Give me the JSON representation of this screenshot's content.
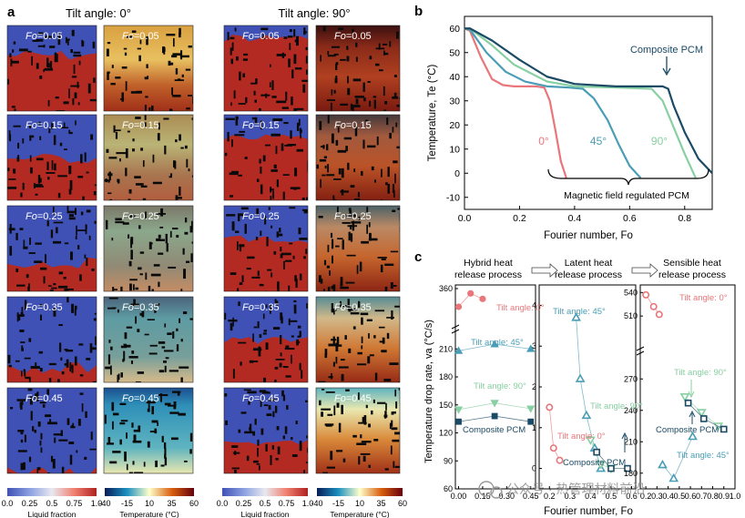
{
  "panel_a": {
    "letter": "a",
    "group0_title": "Tilt angle: 0°",
    "group90_title": "Tilt angle: 90°",
    "rows": [
      "Fo=0.05",
      "Fo=0.15",
      "Fo=0.25",
      "Fo=0.35",
      "Fo=0.45"
    ],
    "liquid_bar": {
      "ticks": [
        "0.0",
        "0.25",
        "0.5",
        "0.75",
        "1.0"
      ],
      "label": "Liquid fraction"
    },
    "temp_bar": {
      "ticks": [
        "-40",
        "-15",
        "10",
        "35",
        "60"
      ],
      "label": "Temperature (°C)"
    }
  },
  "colors": {
    "cold": "#3f51b5",
    "hot": "#c0392b",
    "accent_red": "#e8767a",
    "accent_teal": "#4a9db6",
    "accent_green": "#88cfa2",
    "accent_navy": "#1a4a66"
  },
  "chart_data": [
    {
      "id": "b",
      "letter": "b",
      "type": "line",
      "xlabel": "Fourier number, Fo",
      "ylabel": "Temperature, Te (°C)",
      "xlim": [
        0,
        0.9
      ],
      "ylim": [
        -15,
        65
      ],
      "xticks": [
        "0.0",
        "0.2",
        "0.4",
        "0.6",
        "0.8"
      ],
      "yticks": [
        "-10",
        "0",
        "10",
        "20",
        "30",
        "40",
        "50",
        "60"
      ],
      "series": [
        {
          "name": "0°",
          "color": "#e8767a",
          "x": [
            0,
            0.02,
            0.06,
            0.1,
            0.14,
            0.18,
            0.22,
            0.26,
            0.29,
            0.31,
            0.33,
            0.35,
            0.37
          ],
          "y": [
            60,
            59,
            48,
            39,
            36.5,
            36,
            36,
            36,
            35.5,
            30,
            18,
            5,
            -2
          ]
        },
        {
          "name": "45°",
          "color": "#4a9db6",
          "x": [
            0,
            0.02,
            0.08,
            0.15,
            0.22,
            0.3,
            0.38,
            0.43,
            0.47,
            0.52,
            0.56,
            0.6,
            0.64
          ],
          "y": [
            60,
            59.5,
            50,
            42,
            38,
            36,
            35.5,
            35,
            31,
            22,
            12,
            3,
            -2
          ]
        },
        {
          "name": "90°",
          "color": "#88cfa2",
          "x": [
            0,
            0.02,
            0.1,
            0.18,
            0.3,
            0.4,
            0.55,
            0.68,
            0.72,
            0.76,
            0.8,
            0.84
          ],
          "y": [
            60,
            60,
            53,
            45,
            38,
            36,
            35.5,
            35,
            30,
            19,
            8,
            -2
          ]
        },
        {
          "name": "Composite PCM",
          "color": "#1a4a66",
          "x": [
            0,
            0.02,
            0.1,
            0.2,
            0.3,
            0.4,
            0.55,
            0.72,
            0.74,
            0.76,
            0.8,
            0.85,
            0.9
          ],
          "y": [
            60,
            60,
            55,
            47,
            40,
            37,
            36,
            36,
            35,
            28,
            17,
            6,
            0
          ]
        }
      ],
      "annotations": {
        "composite": "Composite PCM",
        "label0": "0°",
        "label45": "45°",
        "label90": "90°",
        "brace": "Magnetic field regulated PCM"
      }
    },
    {
      "id": "c",
      "letter": "c",
      "type": "scatter",
      "xlabel": "Fourier number, Fo",
      "ylabel": "Temperature drop rate, va (°C/s)",
      "process_titles": [
        "Hybrid heat release process",
        "Latent heat release process",
        "Sensible heat release process"
      ],
      "subplots": [
        {
          "name": "hybrid",
          "xlim": [
            -0.02,
            0.48
          ],
          "ylim": [
            60,
            360
          ],
          "xticks": [
            "0.00",
            "0.15",
            "0.30",
            "0.45"
          ],
          "yticks": [
            "60",
            "90",
            "120",
            "150",
            "180",
            "210",
            "360"
          ],
          "series": [
            {
              "name": "Tilt angle: 0°",
              "marker": "circle",
              "color": "#e8767a",
              "x": [
                0.0,
                0.075,
                0.15
              ],
              "y": [
                330,
                352,
                343
              ]
            },
            {
              "name": "Tilt angle: 45°",
              "marker": "triangle-up",
              "color": "#4a9db6",
              "x": [
                0.0,
                0.225,
                0.45
              ],
              "y": [
                208,
                215,
                210
              ]
            },
            {
              "name": "Tilt angle: 90°",
              "marker": "triangle-down",
              "color": "#88cfa2",
              "x": [
                0.0,
                0.225,
                0.45
              ],
              "y": [
                145,
                152,
                146
              ]
            },
            {
              "name": "Composite PCM",
              "marker": "square",
              "color": "#1a4a66",
              "x": [
                0.0,
                0.225,
                0.45
              ],
              "y": [
                132,
                138,
                132
              ]
            }
          ]
        },
        {
          "name": "latent",
          "xlim": [
            0.15,
            0.62
          ],
          "ylim": [
            -0.5,
            4.5
          ],
          "xticks": [
            "0.2",
            "0.3",
            "0.4",
            "0.5",
            "0.6"
          ],
          "yticks": [
            "0",
            "1",
            "2",
            "3",
            "4"
          ],
          "series": [
            {
              "name": "Tilt angle: 0°",
              "marker": "circle",
              "color": "#e8767a",
              "x": [
                0.2,
                0.22,
                0.25
              ],
              "y": [
                1.5,
                0.5,
                0.2
              ]
            },
            {
              "name": "Tilt angle: 45°",
              "marker": "triangle-up",
              "color": "#4a9db6",
              "x": [
                0.33,
                0.35,
                0.38,
                0.42,
                0.45
              ],
              "y": [
                3.7,
                2.2,
                1.3,
                0.5,
                0.0
              ]
            },
            {
              "name": "Tilt angle: 90°",
              "marker": "triangle-down",
              "color": "#88cfa2",
              "x": [
                0.4,
                0.45,
                0.5
              ],
              "y": [
                0.7,
                0.1,
                0.0
              ]
            },
            {
              "name": "Composite PCM",
              "marker": "square",
              "color": "#1a4a66",
              "x": [
                0.43,
                0.5,
                0.58
              ],
              "y": [
                0.4,
                0.0,
                0.0
              ]
            }
          ]
        },
        {
          "name": "sensible",
          "xlim": [
            0.15,
            1.0
          ],
          "ylim": [
            165,
            545
          ],
          "xticks": [
            "0.2",
            "0.3",
            "0.4",
            "0.5",
            "0.6",
            "0.7",
            "0.8",
            "0.9",
            "1.0"
          ],
          "yticks": [
            "180",
            "210",
            "240",
            "270",
            "510",
            "540"
          ],
          "series": [
            {
              "name": "Tilt angle: 0°",
              "marker": "circle",
              "color": "#e8767a",
              "x": [
                0.2,
                0.27,
                0.32
              ],
              "y": [
                537,
                522,
                512
              ]
            },
            {
              "name": "Tilt angle: 45°",
              "marker": "triangle-up",
              "color": "#4a9db6",
              "x": [
                0.35,
                0.45,
                0.62
              ],
              "y": [
                188,
                175,
                215
              ]
            },
            {
              "name": "Tilt angle: 90°",
              "marker": "triangle-down",
              "color": "#88cfa2",
              "x": [
                0.55,
                0.7,
                0.85
              ],
              "y": [
                253,
                238,
                225
              ]
            },
            {
              "name": "Composite PCM",
              "marker": "square",
              "color": "#1a4a66",
              "x": [
                0.58,
                0.72,
                0.9
              ],
              "y": [
                247,
                232,
                222
              ]
            }
          ]
        }
      ],
      "labels": {
        "hyb0": "Tilt angle: 0°",
        "hyb45": "Tilt angle: 45°",
        "hyb90": "Tilt angle: 90°",
        "hybC": "Composite PCM",
        "lat45": "Tilt angle: 45°",
        "lat90": "Tilt angle: 90°",
        "lat0": "Tilt angle: 0°",
        "latC": "Composite PCM",
        "sen0": "Tilt angle: 0°",
        "sen90": "Tilt angle: 90°",
        "senC": "Composite PCM",
        "sen45": "Tilt angle: 45°"
      }
    }
  ],
  "watermark": "公众号 · 热管理材料前沿"
}
